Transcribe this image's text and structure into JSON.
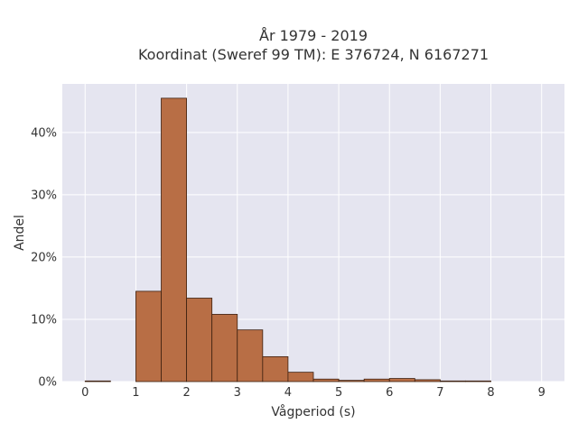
{
  "chart_data": {
    "type": "bar",
    "title_line1": "År 1979 - 2019",
    "title_line2": "Koordinat (Sweref 99 TM): E 376724, N 6167271",
    "xlabel": "Vågperiod (s)",
    "ylabel": "Andel",
    "xlim": [
      -0.45,
      9.45
    ],
    "ylim": [
      0,
      0.478
    ],
    "bin_width": 0.5,
    "bins": [
      {
        "start": 0.0,
        "end": 0.5,
        "value": 0.001
      },
      {
        "start": 0.5,
        "end": 1.0,
        "value": 0.0
      },
      {
        "start": 1.0,
        "end": 1.5,
        "value": 0.145
      },
      {
        "start": 1.5,
        "end": 2.0,
        "value": 0.455
      },
      {
        "start": 2.0,
        "end": 2.5,
        "value": 0.134
      },
      {
        "start": 2.5,
        "end": 3.0,
        "value": 0.108
      },
      {
        "start": 3.0,
        "end": 3.5,
        "value": 0.083
      },
      {
        "start": 3.5,
        "end": 4.0,
        "value": 0.04
      },
      {
        "start": 4.0,
        "end": 4.5,
        "value": 0.015
      },
      {
        "start": 4.5,
        "end": 5.0,
        "value": 0.004
      },
      {
        "start": 5.0,
        "end": 5.5,
        "value": 0.002
      },
      {
        "start": 5.5,
        "end": 6.0,
        "value": 0.004
      },
      {
        "start": 6.0,
        "end": 6.5,
        "value": 0.005
      },
      {
        "start": 6.5,
        "end": 7.0,
        "value": 0.003
      },
      {
        "start": 7.0,
        "end": 7.5,
        "value": 0.001
      },
      {
        "start": 7.5,
        "end": 8.0,
        "value": 0.001
      }
    ],
    "x_ticks": [
      0,
      1,
      2,
      3,
      4,
      5,
      6,
      7,
      8,
      9
    ],
    "x_tick_labels": [
      "0",
      "1",
      "2",
      "3",
      "4",
      "5",
      "6",
      "7",
      "8",
      "9"
    ],
    "y_ticks": [
      0,
      0.1,
      0.2,
      0.3,
      0.4
    ],
    "y_tick_labels": [
      "0%",
      "10%",
      "20%",
      "30%",
      "40%"
    ],
    "grid": true,
    "colors": {
      "plot_bg": "#e5e5f0",
      "grid": "#ffffff",
      "bar_fill": "#b86e45",
      "bar_edge": "#3d2010"
    }
  }
}
